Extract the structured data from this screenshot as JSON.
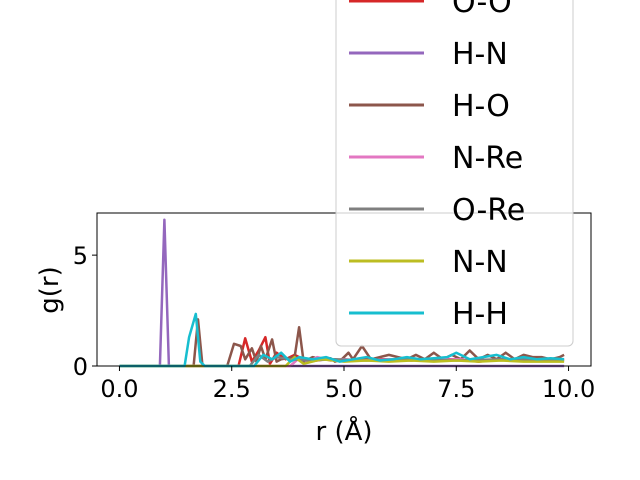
{
  "chart_data": {
    "type": "line",
    "xlabel": "r (Å)",
    "ylabel": "g(r)",
    "xlim": [
      -0.5,
      10.5
    ],
    "ylim": [
      0,
      6.9
    ],
    "xticks": [
      0.0,
      2.5,
      5.0,
      7.5,
      10.0
    ],
    "xtick_labels": [
      "0.0",
      "2.5",
      "5.0",
      "7.5",
      "10.0"
    ],
    "yticks": [
      0,
      5
    ],
    "ytick_labels": [
      "0",
      "5"
    ],
    "grid": false,
    "legend_position": "upper-right",
    "series": [
      {
        "name": "O-O",
        "color": "#d62728",
        "x": [
          0,
          2.65,
          2.8,
          2.95,
          3.1,
          3.25,
          3.35,
          3.5,
          3.7,
          3.9,
          4.2,
          4.6,
          5.0,
          5.5,
          6.0,
          6.5,
          7.0,
          7.5,
          8.0,
          8.5,
          9.0,
          9.5,
          9.9
        ],
        "y": [
          0,
          0,
          1.25,
          0.2,
          0.7,
          1.3,
          0.1,
          0.6,
          0.3,
          0.5,
          0.2,
          0.3,
          0.25,
          0.3,
          0.3,
          0.25,
          0.3,
          0.3,
          0.2,
          0.3,
          0.25,
          0.3,
          0.25
        ]
      },
      {
        "name": "H-N",
        "color": "#9467bd",
        "x": [
          0,
          0.9,
          1.0,
          1.1,
          1.2,
          9.9
        ],
        "y": [
          0,
          0,
          6.6,
          0,
          0,
          0
        ]
      },
      {
        "name": "H-O",
        "color": "#8c564b",
        "x": [
          0,
          1.65,
          1.75,
          1.85,
          2.4,
          2.55,
          2.7,
          2.8,
          2.95,
          3.05,
          3.15,
          3.25,
          3.4,
          3.5,
          3.6,
          3.75,
          3.9,
          4.0,
          4.1,
          4.3,
          4.5,
          4.7,
          4.8,
          4.95,
          5.1,
          5.2,
          5.4,
          5.6,
          5.8,
          6.0,
          6.2,
          6.4,
          6.6,
          6.8,
          7.0,
          7.2,
          7.4,
          7.6,
          7.8,
          8.0,
          8.2,
          8.4,
          8.6,
          8.8,
          9.0,
          9.2,
          9.4,
          9.6,
          9.8,
          9.9
        ],
        "y": [
          0,
          0,
          2.1,
          0,
          0,
          1.0,
          0.9,
          0.3,
          0.8,
          0.2,
          0.9,
          0.3,
          1.2,
          0.2,
          0.3,
          0.35,
          0.4,
          1.75,
          0.2,
          0.4,
          0.3,
          0.35,
          0.2,
          0.3,
          0.6,
          0.3,
          0.9,
          0.3,
          0.4,
          0.5,
          0.4,
          0.3,
          0.5,
          0.3,
          0.6,
          0.3,
          0.5,
          0.3,
          0.7,
          0.3,
          0.5,
          0.3,
          0.6,
          0.3,
          0.5,
          0.4,
          0.4,
          0.3,
          0.4,
          0.5
        ]
      },
      {
        "name": "N-Re",
        "color": "#e377c2",
        "x": [
          0,
          3.8,
          4.0,
          4.2,
          4.4,
          4.7,
          5.0,
          5.4,
          6.0,
          6.8,
          7.5,
          8.2,
          9.0,
          9.9
        ],
        "y": [
          0,
          0,
          0.35,
          0.2,
          0.4,
          0.25,
          0.3,
          0.25,
          0.3,
          0.25,
          0.3,
          0.25,
          0.3,
          0.3
        ]
      },
      {
        "name": "O-Re",
        "color": "#7f7f7f",
        "x": [
          0,
          2.9,
          3.1,
          3.3,
          3.5,
          3.8,
          4.2,
          4.8,
          5.5,
          6.5,
          7.5,
          8.5,
          9.9
        ],
        "y": [
          0,
          0,
          0.5,
          0.2,
          0.4,
          0.3,
          0.25,
          0.3,
          0.25,
          0.3,
          0.25,
          0.3,
          0.25
        ]
      },
      {
        "name": "N-N",
        "color": "#bcbd22",
        "x": [
          0,
          3.7,
          3.9,
          4.1,
          4.5,
          5.0,
          5.5,
          6.0,
          6.5,
          7.0,
          7.5,
          8.0,
          8.5,
          9.0,
          9.5,
          9.9
        ],
        "y": [
          0,
          0,
          0.4,
          0.1,
          0.3,
          0.2,
          0.25,
          0.2,
          0.25,
          0.2,
          0.25,
          0.2,
          0.25,
          0.2,
          0.2,
          0.2
        ]
      },
      {
        "name": "H-H",
        "color": "#17becf",
        "x": [
          0,
          1.45,
          1.55,
          1.7,
          1.8,
          1.9,
          3.0,
          3.2,
          3.4,
          3.6,
          3.8,
          4.0,
          4.3,
          4.6,
          4.9,
          5.2,
          5.5,
          5.8,
          6.1,
          6.4,
          6.7,
          7.0,
          7.3,
          7.5,
          7.8,
          8.1,
          8.4,
          8.7,
          9.0,
          9.3,
          9.6,
          9.9
        ],
        "y": [
          0,
          0,
          1.3,
          2.35,
          0.2,
          0,
          0,
          0.5,
          0.3,
          0.6,
          0.2,
          0.4,
          0.3,
          0.4,
          0.2,
          0.3,
          0.4,
          0.25,
          0.3,
          0.4,
          0.3,
          0.35,
          0.4,
          0.6,
          0.3,
          0.4,
          0.5,
          0.3,
          0.4,
          0.3,
          0.35,
          0.3
        ]
      }
    ]
  }
}
